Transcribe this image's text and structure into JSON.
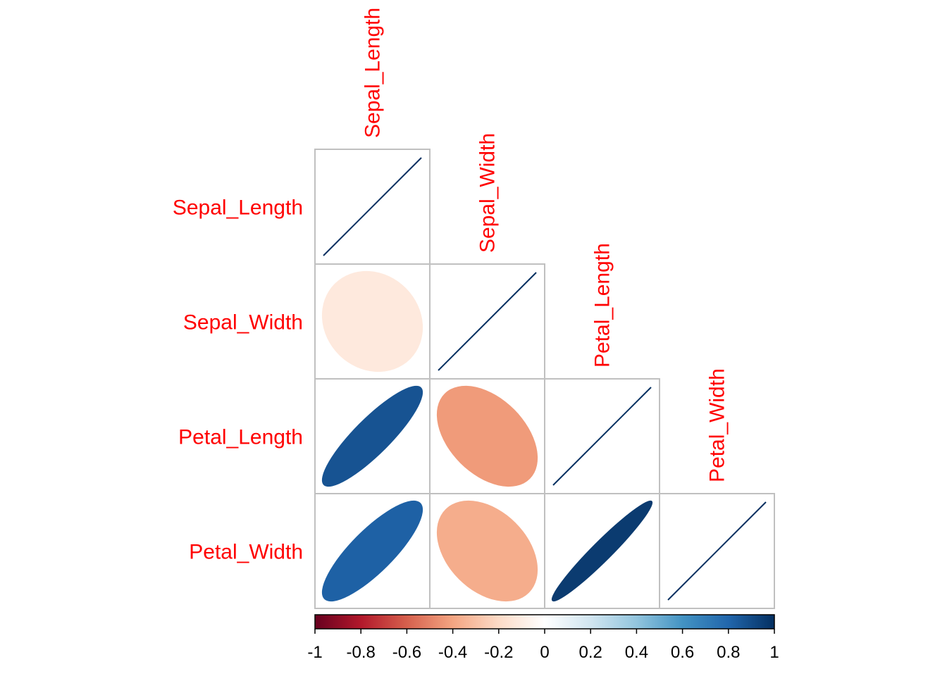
{
  "chart_data": {
    "type": "heatmap",
    "style": "corrplot-ellipse-lower-triangle",
    "variables": [
      "Sepal_Length",
      "Sepal_Width",
      "Petal_Length",
      "Petal_Width"
    ],
    "correlations": [
      [
        1.0,
        -0.12,
        0.87,
        0.82
      ],
      [
        -0.12,
        1.0,
        -0.43,
        -0.37
      ],
      [
        0.87,
        -0.43,
        1.0,
        0.96
      ],
      [
        0.82,
        -0.37,
        0.96,
        1.0
      ]
    ],
    "label_color": "#ff0000",
    "grid_color": "#c0c0c0",
    "colorbar": {
      "range": [
        -1,
        1
      ],
      "ticks": [
        "-1",
        "-0.8",
        "-0.6",
        "-0.4",
        "-0.2",
        "0",
        "0.2",
        "0.4",
        "0.6",
        "0.8",
        "1"
      ],
      "stops": [
        "#67001f",
        "#b2182b",
        "#d6604d",
        "#f4a582",
        "#fddbc7",
        "#ffffff",
        "#d1e5f0",
        "#92c5de",
        "#4393c3",
        "#2166ac",
        "#053061"
      ]
    }
  }
}
